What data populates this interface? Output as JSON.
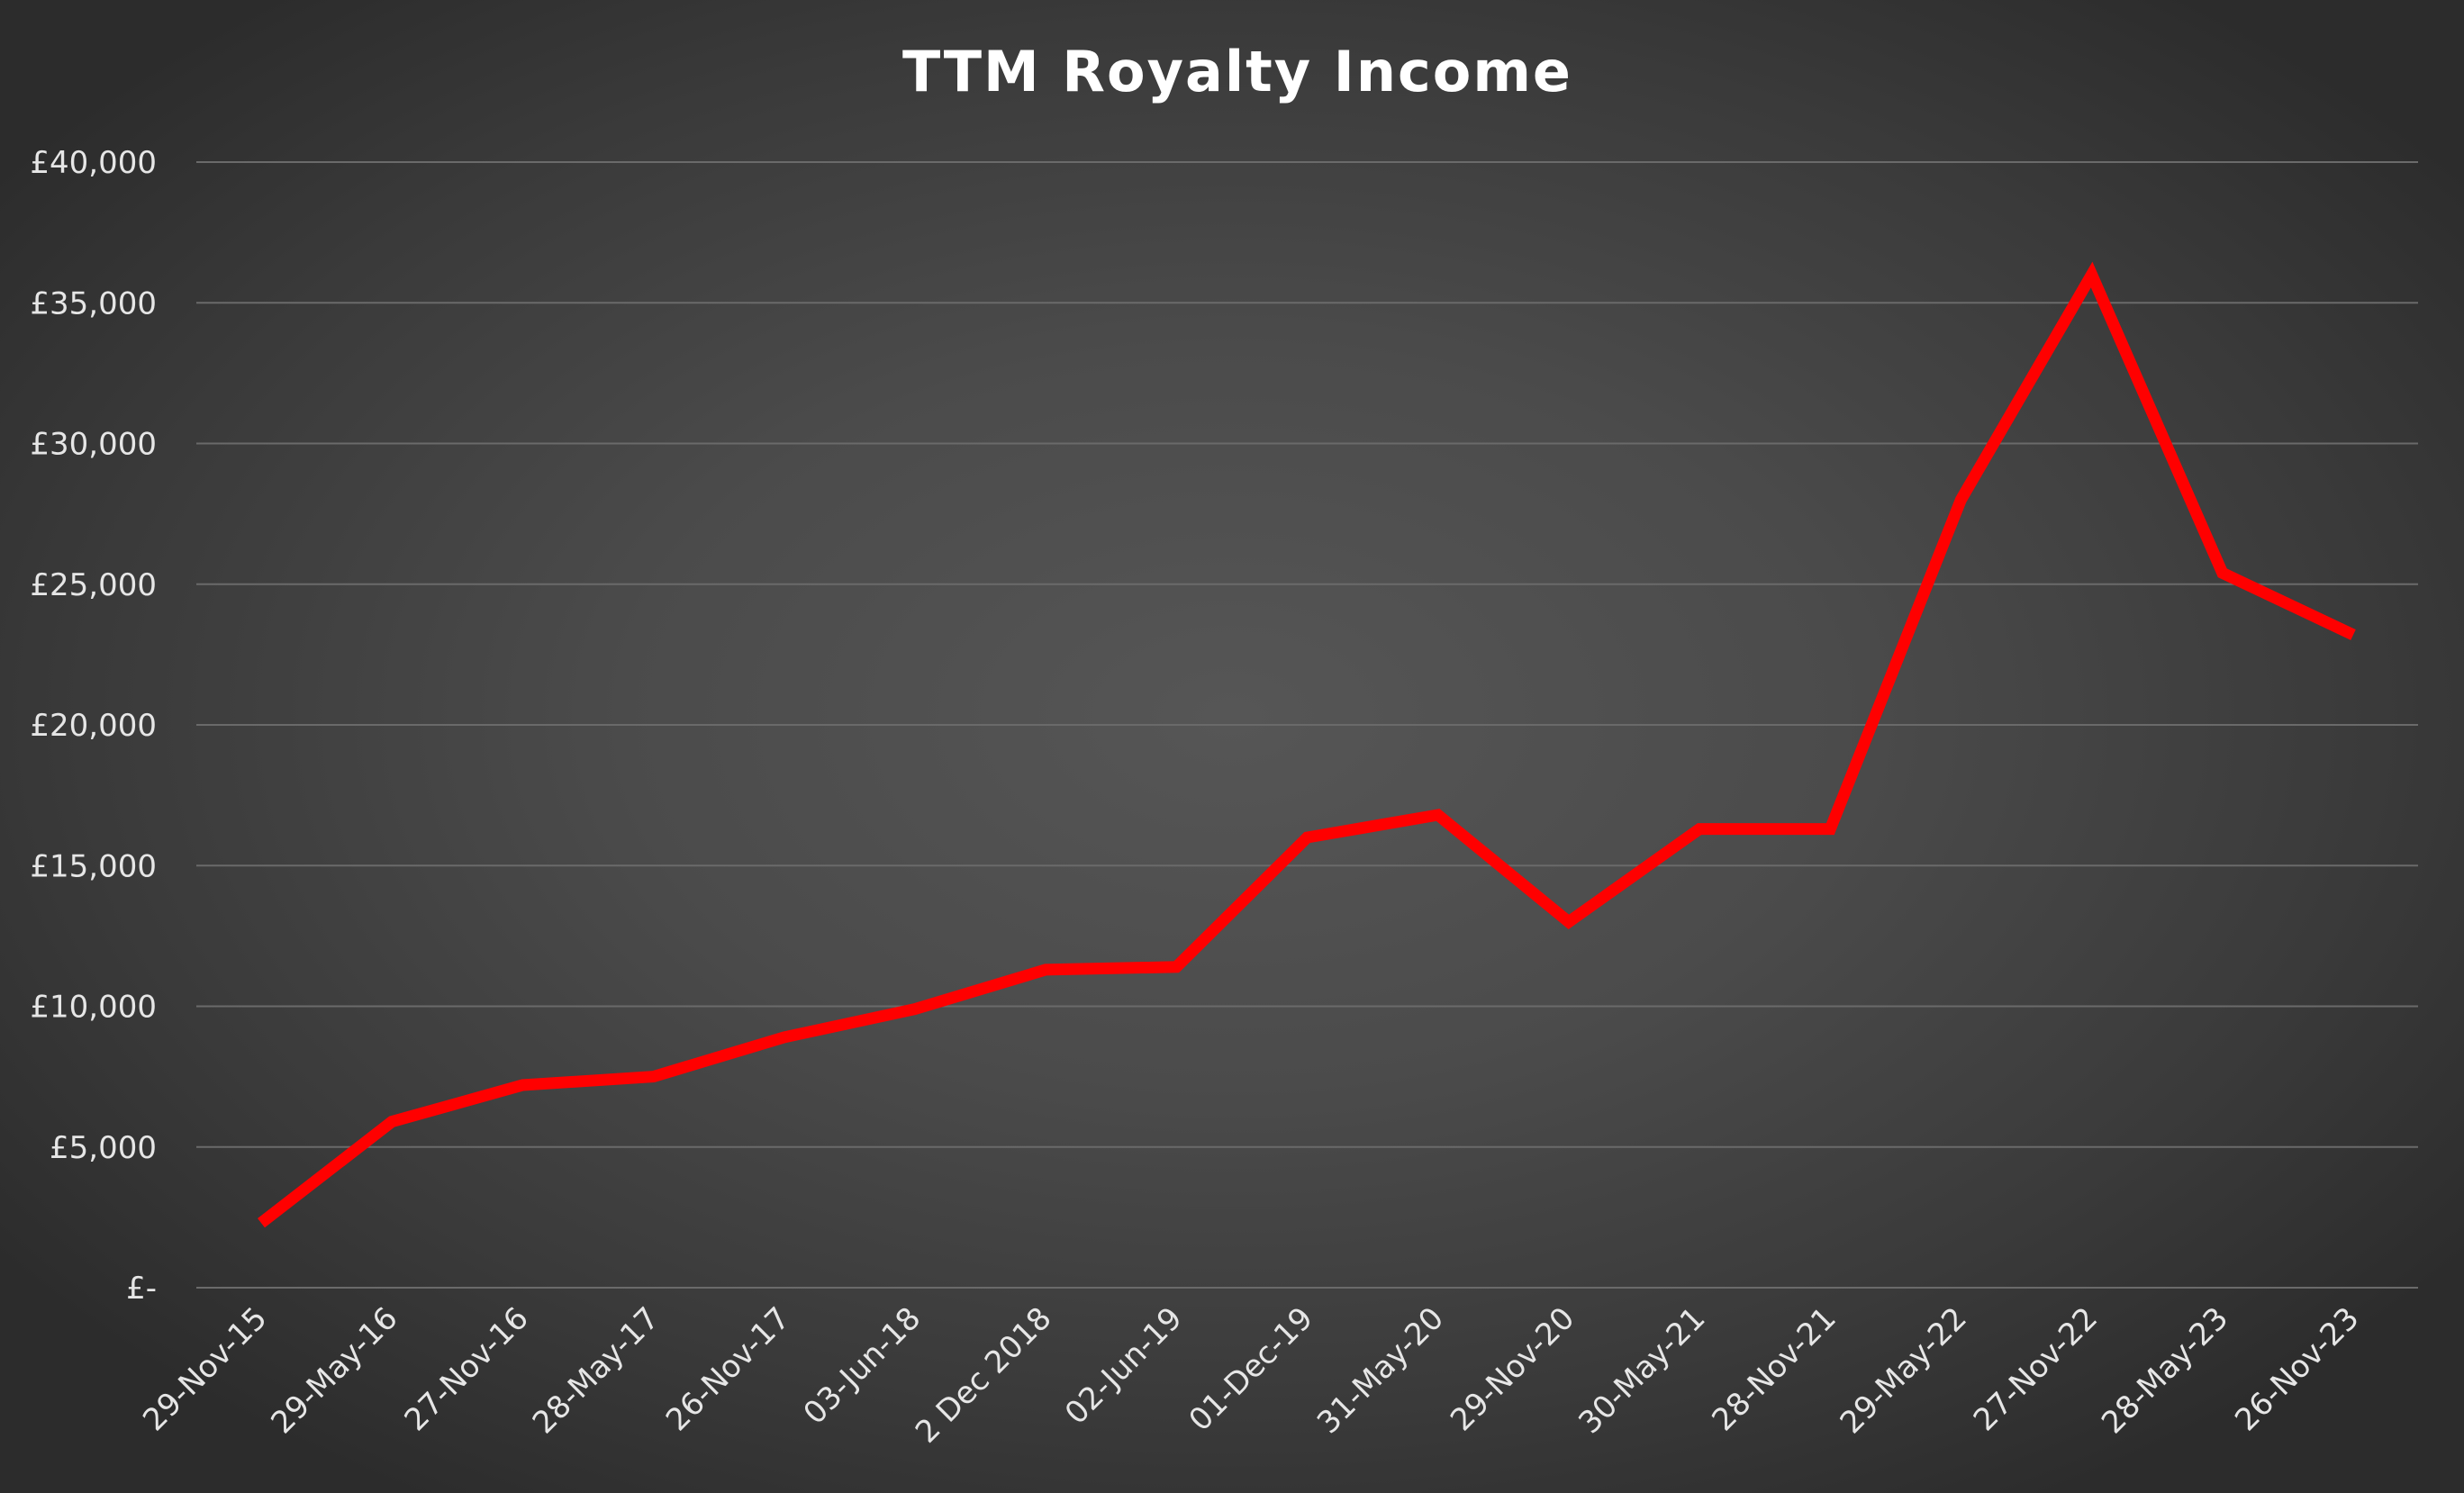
{
  "chart_data": {
    "type": "line",
    "title": "TTM Royalty Income",
    "xlabel": "",
    "ylabel": "",
    "categories": [
      "29-Nov-15",
      "29-May-16",
      "27-Nov-16",
      "28-May-17",
      "26-Nov-17",
      "03-Jun-18",
      "2 Dec 2018",
      "02-Jun-19",
      "01-Dec-19",
      "31-May-20",
      "29-Nov-20",
      "30-May-21",
      "28-Nov-21",
      "29-May-22",
      "27-Nov-22",
      "28-May-23",
      "26-Nov-23"
    ],
    "series": [
      {
        "values": [
          2300,
          5900,
          7200,
          7500,
          8900,
          9900,
          11300,
          11400,
          16000,
          16800,
          13000,
          16300,
          16300,
          28000,
          36000,
          25400,
          23200
        ],
        "color": "#ff0000"
      }
    ],
    "ylim": [
      0,
      40000
    ],
    "yticks": [
      {
        "value": 0,
        "label": "£-"
      },
      {
        "value": 5000,
        "label": "£5,000"
      },
      {
        "value": 10000,
        "label": "£10,000"
      },
      {
        "value": 15000,
        "label": "£15,000"
      },
      {
        "value": 20000,
        "label": "£20,000"
      },
      {
        "value": 25000,
        "label": "£25,000"
      },
      {
        "value": 30000,
        "label": "£30,000"
      },
      {
        "value": 35000,
        "label": "£35,000"
      },
      {
        "value": 40000,
        "label": "£40,000"
      }
    ],
    "grid": true,
    "legend": "none",
    "gridline_color": "#6a6a6a",
    "background_color": "#4a4a4a"
  }
}
